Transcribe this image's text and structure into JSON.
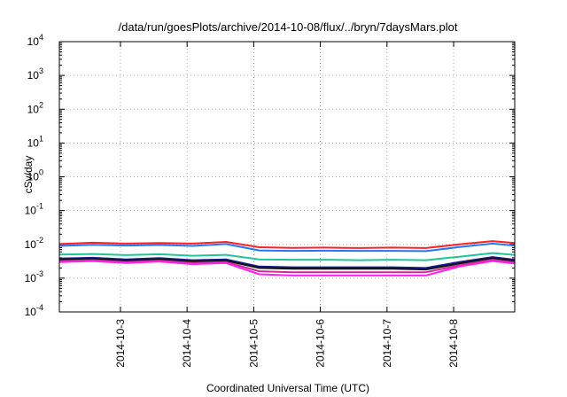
{
  "chart_data": {
    "type": "line",
    "title": "/data/run/goesPlots/archive/2014-10-08/flux/../bryn/7daysMars.plot",
    "xlabel": "Coordinated Universal Time (UTC)",
    "ylabel": "cSv/day",
    "yscale": "log",
    "ylim": [
      0.0001,
      10000
    ],
    "xlim": [
      "2014-10-02T02:00",
      "2014-10-08T22:00"
    ],
    "grid": true,
    "y_ticks": [
      {
        "base": "10",
        "exp": "-4"
      },
      {
        "base": "10",
        "exp": "-3"
      },
      {
        "base": "10",
        "exp": "-2"
      },
      {
        "base": "10",
        "exp": "-1"
      },
      {
        "base": "10",
        "exp": "0"
      },
      {
        "base": "10",
        "exp": "1"
      },
      {
        "base": "10",
        "exp": "2"
      },
      {
        "base": "10",
        "exp": "3"
      },
      {
        "base": "10",
        "exp": "4"
      }
    ],
    "x_ticks": [
      "2014-10-3",
      "2014-10-4",
      "2014-10-5",
      "2014-10-6",
      "2014-10-7",
      "2014-10-8"
    ],
    "x": [
      "2014-10-02T02:00",
      "2014-10-02T14:00",
      "2014-10-03T02:00",
      "2014-10-03T14:00",
      "2014-10-04T02:00",
      "2014-10-04T14:00",
      "2014-10-05T02:00",
      "2014-10-05T14:00",
      "2014-10-06T02:00",
      "2014-10-06T14:00",
      "2014-10-07T02:00",
      "2014-10-07T14:00",
      "2014-10-08T02:00",
      "2014-10-08T14:00",
      "2014-10-08T22:00"
    ],
    "series": [
      {
        "color": "#ff2020",
        "values": [
          0.0102,
          0.0112,
          0.0105,
          0.011,
          0.0105,
          0.0118,
          0.0082,
          0.0079,
          0.008,
          0.0078,
          0.008,
          0.0078,
          0.01,
          0.0125,
          0.011
        ]
      },
      {
        "color": "#1f78ff",
        "values": [
          0.009,
          0.0097,
          0.0092,
          0.0096,
          0.009,
          0.0102,
          0.0066,
          0.0064,
          0.0065,
          0.0064,
          0.0064,
          0.0063,
          0.0083,
          0.0105,
          0.0092
        ]
      },
      {
        "color": "#1fc49a",
        "values": [
          0.005,
          0.0052,
          0.0048,
          0.0051,
          0.0046,
          0.0049,
          0.0036,
          0.0035,
          0.0035,
          0.0034,
          0.0035,
          0.0034,
          0.0043,
          0.0055,
          0.0049
        ]
      },
      {
        "color": "#1a1a8c",
        "values": [
          0.0038,
          0.004,
          0.0036,
          0.0039,
          0.0034,
          0.0036,
          0.0022,
          0.0021,
          0.0021,
          0.0021,
          0.0021,
          0.002,
          0.003,
          0.0042,
          0.0035
        ]
      },
      {
        "color": "#111111",
        "values": [
          0.0035,
          0.0037,
          0.0033,
          0.0036,
          0.0031,
          0.0033,
          0.002,
          0.0019,
          0.0019,
          0.0019,
          0.0019,
          0.0018,
          0.0027,
          0.0039,
          0.0032
        ]
      },
      {
        "color": "#cc2a9a",
        "values": [
          0.0032,
          0.0034,
          0.003,
          0.0033,
          0.0028,
          0.003,
          0.0016,
          0.0015,
          0.0015,
          0.0015,
          0.0015,
          0.0015,
          0.0024,
          0.0035,
          0.0029
        ]
      },
      {
        "color": "#ff22ee",
        "values": [
          0.003,
          0.0032,
          0.0028,
          0.0031,
          0.0026,
          0.0028,
          0.0013,
          0.0012,
          0.0012,
          0.0012,
          0.0012,
          0.0012,
          0.0022,
          0.0032,
          0.0027
        ]
      }
    ]
  }
}
